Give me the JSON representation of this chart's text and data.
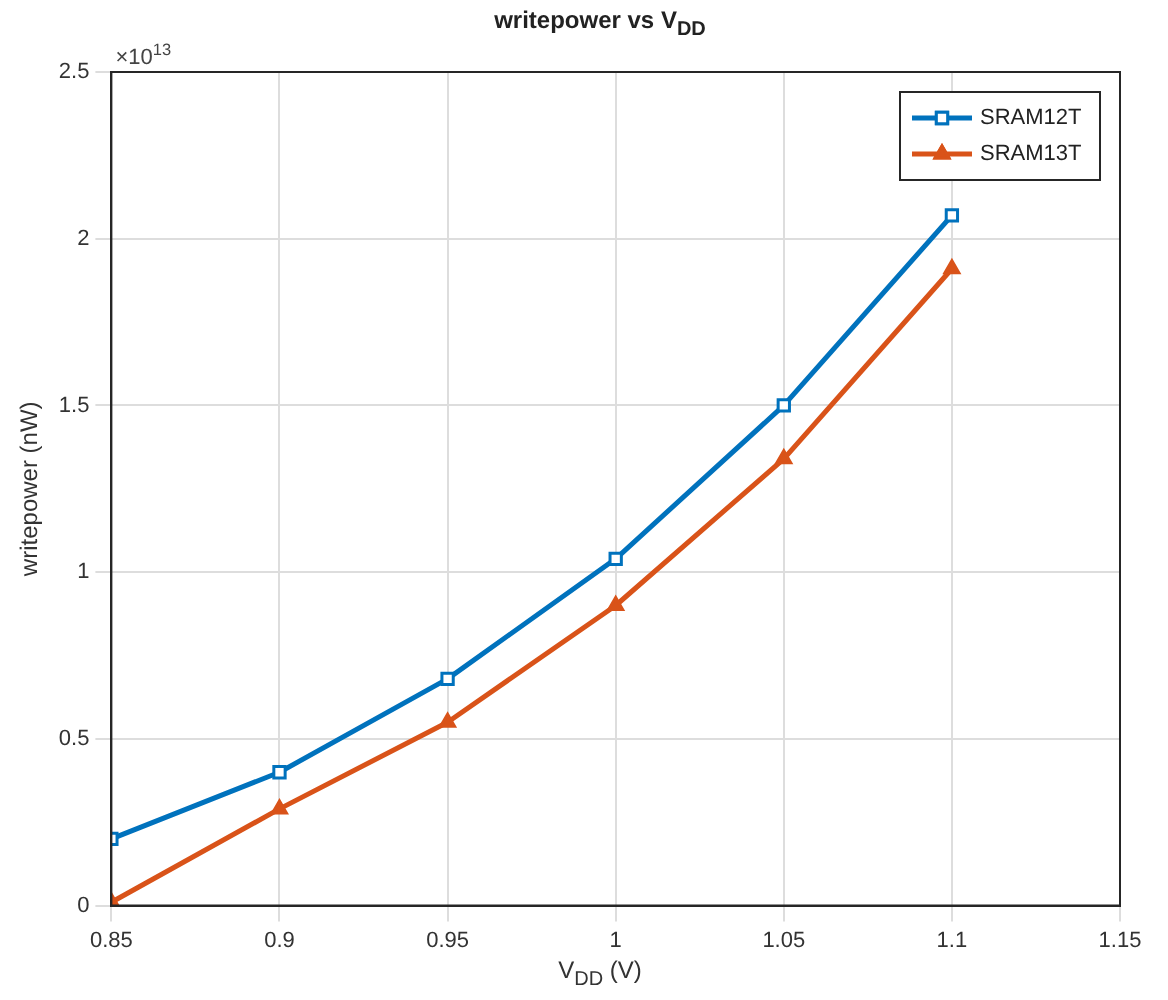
{
  "chart_data": {
    "type": "line",
    "title": "writepower vs V$_{DD}$",
    "xlabel": "V$_{DD}$ (V)",
    "ylabel": "writepower (nW)",
    "annotations": [
      "×10$^{13}$"
    ],
    "x": [
      0.85,
      0.9,
      0.95,
      1,
      1.05,
      1.1
    ],
    "series": [
      {
        "name": "SRAM12T",
        "color": "#0072bd",
        "marker": "square",
        "values": [
          0.2,
          0.4,
          0.68,
          1.04,
          1.5,
          2.07
        ]
      },
      {
        "name": "SRAM13T",
        "color": "#d95319",
        "marker": "triangle",
        "values": [
          0.01,
          0.29,
          0.55,
          0.9,
          1.34,
          1.91
        ]
      }
    ],
    "xlim": [
      0.85,
      1.15
    ],
    "xticks": [
      0.85,
      0.9,
      0.95,
      1,
      1.05,
      1.1,
      1.15
    ],
    "ylim": [
      0,
      2.5
    ],
    "yticks": [
      0,
      0.5,
      1,
      1.5,
      2,
      2.5
    ],
    "grid": true,
    "legend": "top right",
    "line_style": "solid"
  }
}
